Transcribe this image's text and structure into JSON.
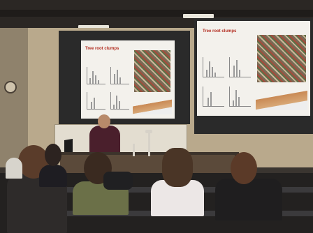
{
  "slides": [
    {
      "title": "Tree root clumps",
      "bullets": [
        "",
        "",
        "",
        ""
      ],
      "foot": ""
    },
    {
      "title": "Tree root clumps",
      "bullets": [
        "",
        "",
        "",
        ""
      ],
      "foot": ""
    }
  ],
  "colors": {
    "slide_title": "#b22b1e",
    "presenter_shirt": "#4a1f2c",
    "wall": "#b9a98c"
  }
}
